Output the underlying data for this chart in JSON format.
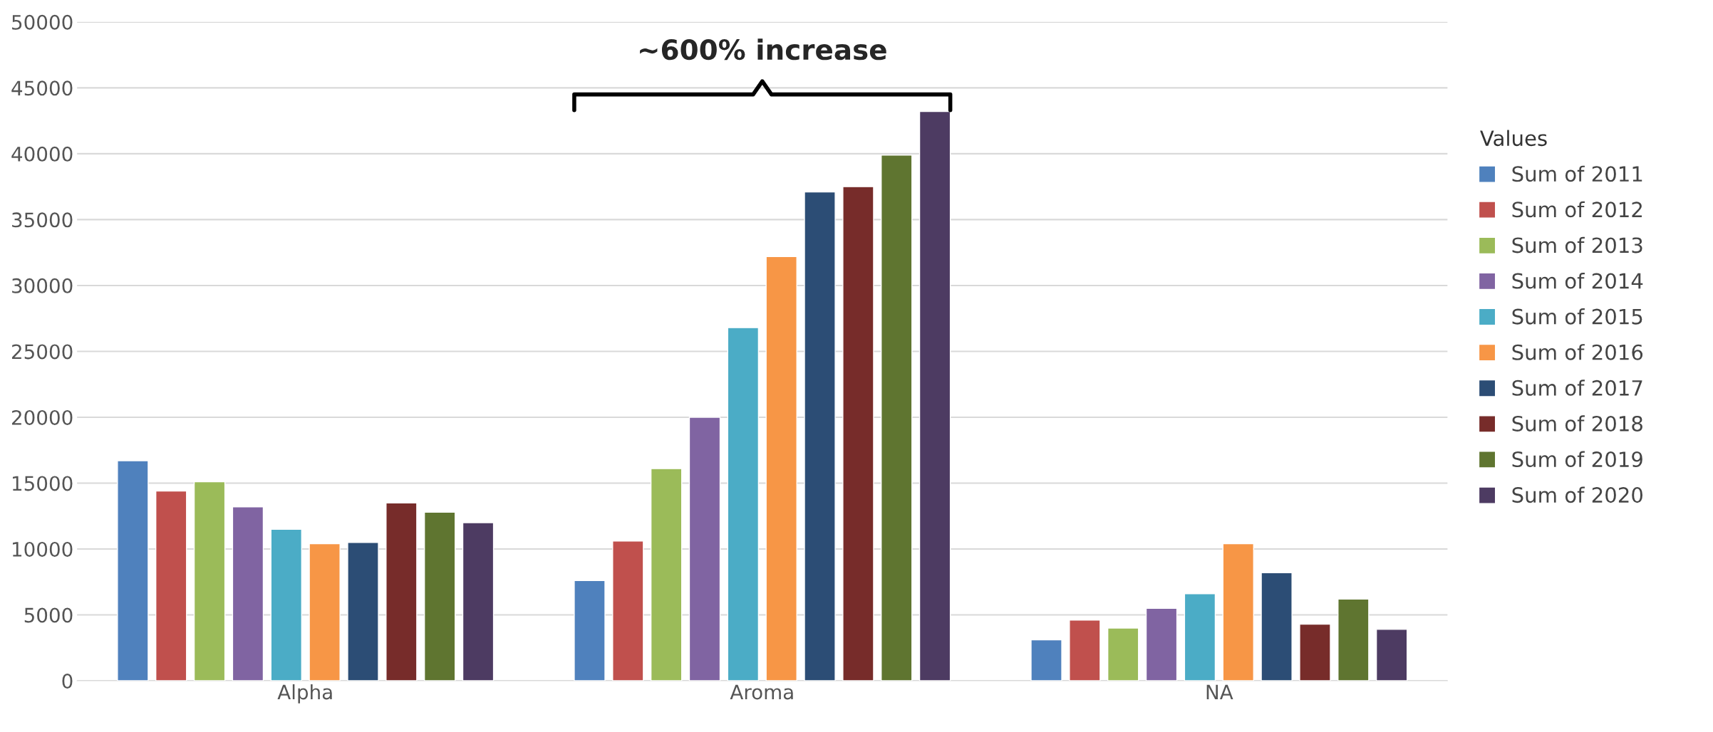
{
  "chart_data": {
    "type": "bar",
    "categories": [
      "Alpha",
      "Aroma",
      "NA"
    ],
    "series": [
      {
        "name": "Sum of 2011",
        "color": "#4f81bd",
        "values": [
          16700,
          7600,
          3100
        ]
      },
      {
        "name": "Sum of 2012",
        "color": "#c0504d",
        "values": [
          14400,
          10600,
          4600
        ]
      },
      {
        "name": "Sum of 2013",
        "color": "#9bbb59",
        "values": [
          15100,
          16100,
          4000
        ]
      },
      {
        "name": "Sum of 2014",
        "color": "#8064a2",
        "values": [
          13200,
          20000,
          5500
        ]
      },
      {
        "name": "Sum of 2015",
        "color": "#4bacc6",
        "values": [
          11500,
          26800,
          6600
        ]
      },
      {
        "name": "Sum of 2016",
        "color": "#f79646",
        "values": [
          10400,
          32200,
          10400
        ]
      },
      {
        "name": "Sum of 2017",
        "color": "#2c4d75",
        "values": [
          10500,
          37100,
          8200
        ]
      },
      {
        "name": "Sum of 2018",
        "color": "#772c2a",
        "values": [
          13500,
          37500,
          4300
        ]
      },
      {
        "name": "Sum of 2019",
        "color": "#5f7530",
        "values": [
          12800,
          39900,
          6200
        ]
      },
      {
        "name": "Sum of 2020",
        "color": "#4d3b62",
        "values": [
          12000,
          43200,
          3900
        ]
      }
    ],
    "ylim": [
      0,
      50000
    ],
    "yticks": [
      0,
      5000,
      10000,
      15000,
      20000,
      25000,
      30000,
      35000,
      40000,
      45000,
      50000
    ],
    "grid": "y",
    "legend": "right",
    "legend_title": "Values",
    "annotations": [
      "~600% increase"
    ]
  }
}
